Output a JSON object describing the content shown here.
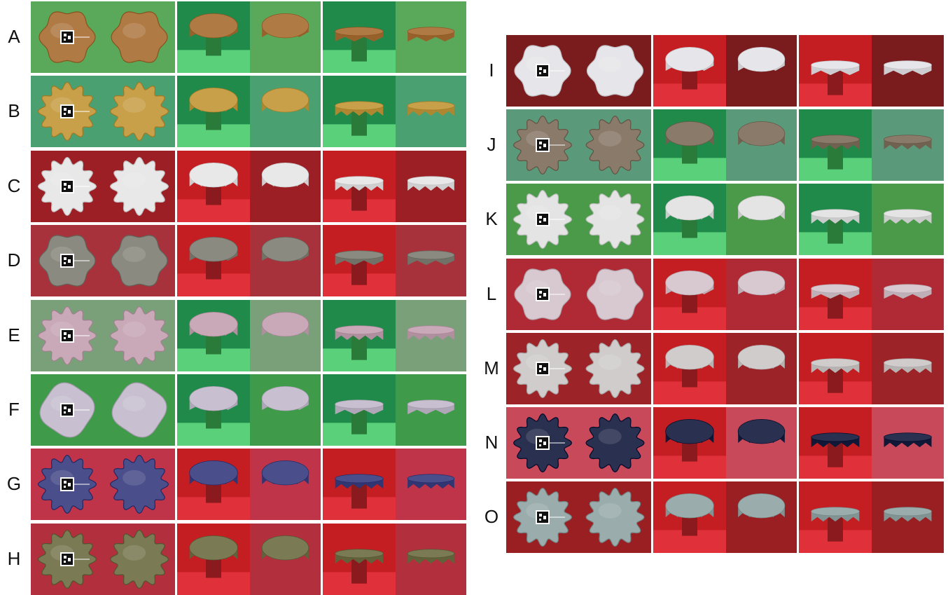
{
  "figure": {
    "left_rows": [
      {
        "label": "A",
        "bg": "#5aa85a",
        "cloth": "#b07a45",
        "shape": "wavy",
        "scene": "green"
      },
      {
        "label": "B",
        "bg": "#4aa070",
        "cloth": "#c9a04a",
        "shape": "scallop",
        "scene": "green"
      },
      {
        "label": "C",
        "bg": "#9c1f25",
        "cloth": "#e8e8e8",
        "shape": "scallop",
        "scene": "red"
      },
      {
        "label": "D",
        "bg": "#a8323c",
        "cloth": "#8a8a80",
        "shape": "wavy",
        "scene": "red"
      },
      {
        "label": "E",
        "bg": "#7aa07a",
        "cloth": "#c9a8b8",
        "shape": "scallop",
        "scene": "green"
      },
      {
        "label": "F",
        "bg": "#3f9a4a",
        "cloth": "#c8c0d0",
        "shape": "rounded",
        "scene": "green"
      },
      {
        "label": "G",
        "bg": "#c0344a",
        "cloth": "#4a4e8a",
        "shape": "scallop",
        "scene": "red"
      },
      {
        "label": "H",
        "bg": "#b2303e",
        "cloth": "#7a7a55",
        "shape": "scallop",
        "scene": "red"
      }
    ],
    "right_rows": [
      {
        "label": "I",
        "bg": "#7a1c1e",
        "cloth": "#e6e6ea",
        "shape": "wavy",
        "scene": "red"
      },
      {
        "label": "J",
        "bg": "#5a9a7a",
        "cloth": "#8a7a6a",
        "shape": "scallop",
        "scene": "green"
      },
      {
        "label": "K",
        "bg": "#4a9a4a",
        "cloth": "#e4e4e4",
        "shape": "scallop",
        "scene": "green"
      },
      {
        "label": "L",
        "bg": "#b02a35",
        "cloth": "#d8c8d0",
        "shape": "wavy",
        "scene": "red"
      },
      {
        "label": "M",
        "bg": "#9c2328",
        "cloth": "#d0cccc",
        "shape": "scallop",
        "scene": "red"
      },
      {
        "label": "N",
        "bg": "#c84a5a",
        "cloth": "#2a3050",
        "shape": "scallop",
        "scene": "red"
      },
      {
        "label": "O",
        "bg": "#9a1f22",
        "cloth": "#9aacac",
        "shape": "scallop",
        "scene": "red"
      }
    ]
  }
}
